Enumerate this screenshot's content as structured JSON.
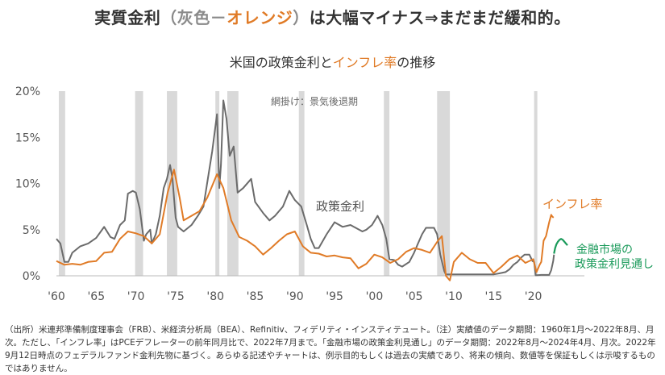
{
  "headline": {
    "prefix": "実質金利",
    "paren_open": "（灰色－",
    "accent": "オレンジ",
    "paren_close": "）",
    "suffix": "は大幅マイナス⇒まだまだ緩和的。"
  },
  "subtitle": {
    "prefix": "米国の政策金利と",
    "accent": "インフレ率",
    "suffix": "の推移"
  },
  "footnote": "（出所）米連邦準備制度理事会（FRB）、米経済分析局（BEA）、Refinitiv、フィデリティ・インスティテュート。（注）実績値のデータ期間：1960年1月～2022年8月、月次。ただし、「インフレ率」はPCEデフレーターの前年同月比で、2022年7月まで。「金融市場の政策金利見通し」のデータ期間：2022年8月～2024年4月、月次。2022年9月12日時点のフェデラルファンド金利先物に基づく。あらゆる記述やチャートは、例示目的もしくは過去の実績であり、将来の傾向、数値等を保証もしくは示唆するものではありません。",
  "colors": {
    "policy_rate": "#6b6b6b",
    "inflation": "#e07b27",
    "outlook": "#1a9a5a",
    "recession": "#d9d9d9"
  },
  "chart_data": {
    "type": "line",
    "title": "米国の政策金利とインフレ率の推移",
    "xlabel": "",
    "ylabel": "",
    "xlim": [
      1960,
      2024.4
    ],
    "ylim": [
      0,
      20
    ],
    "x_ticks": [
      1960,
      1965,
      1970,
      1975,
      1980,
      1985,
      1990,
      1995,
      2000,
      2005,
      2010,
      2015,
      2020
    ],
    "x_tick_labels": [
      "'60",
      "'65",
      "'70",
      "'75",
      "'80",
      "'85",
      "'90",
      "'95",
      "'00",
      "'05",
      "'10",
      "'15",
      "'20"
    ],
    "y_ticks": [
      0,
      5,
      10,
      15,
      20
    ],
    "y_tick_labels": [
      "0%",
      "5%",
      "10%",
      "15%",
      "20%"
    ],
    "recession_label": "網掛け：景気後退期",
    "recessions": [
      [
        1960.3,
        1961.1
      ],
      [
        1969.9,
        1970.9
      ],
      [
        1973.9,
        1975.2
      ],
      [
        1980.0,
        1980.5
      ],
      [
        1981.5,
        1982.9
      ],
      [
        1990.5,
        1991.2
      ],
      [
        2001.2,
        2001.9
      ],
      [
        2007.9,
        2009.5
      ],
      [
        2020.1,
        2020.4
      ]
    ],
    "series": [
      {
        "name": "政策金利",
        "label": "政策金利",
        "color": "#6b6b6b",
        "x": [
          1960.0,
          1960.5,
          1961.0,
          1961.5,
          1962.0,
          1963.0,
          1964.0,
          1965.0,
          1966.0,
          1966.8,
          1967.3,
          1968.0,
          1968.6,
          1969.0,
          1969.6,
          1970.0,
          1970.5,
          1971.0,
          1971.3,
          1971.8,
          1972.0,
          1972.5,
          1973.0,
          1973.5,
          1973.9,
          1974.3,
          1974.6,
          1975.0,
          1975.3,
          1976.0,
          1977.0,
          1977.8,
          1978.5,
          1979.0,
          1979.6,
          1980.2,
          1980.5,
          1980.7,
          1981.0,
          1981.4,
          1981.8,
          1982.3,
          1982.8,
          1983.5,
          1984.5,
          1985.0,
          1986.0,
          1986.8,
          1987.5,
          1988.5,
          1989.3,
          1990.0,
          1990.8,
          1991.5,
          1992.0,
          1992.5,
          1993.0,
          1994.0,
          1995.0,
          1996.0,
          1997.0,
          1998.5,
          1999.0,
          1999.7,
          2000.4,
          2001.0,
          2001.5,
          2001.9,
          2002.5,
          2003.0,
          2003.5,
          2004.4,
          2005.0,
          2005.5,
          2006.0,
          2006.5,
          2007.5,
          2007.9,
          2008.3,
          2008.8,
          2009.0,
          2010.0,
          2012.0,
          2015.0,
          2015.9,
          2016.5,
          2017.0,
          2017.5,
          2018.0,
          2018.5,
          2018.9,
          2019.5,
          2019.9,
          2020.1,
          2020.3,
          2021.0,
          2022.0,
          2022.25,
          2022.4,
          2022.5,
          2022.6
        ],
        "y": [
          4.0,
          3.5,
          1.5,
          1.5,
          2.5,
          3.2,
          3.5,
          4.1,
          5.3,
          4.2,
          4.0,
          5.5,
          6.0,
          8.9,
          9.2,
          9.0,
          7.2,
          3.8,
          4.5,
          5.0,
          3.5,
          4.5,
          6.5,
          9.5,
          10.5,
          12.0,
          10.5,
          6.3,
          5.3,
          4.8,
          5.5,
          6.5,
          7.5,
          10.2,
          13.5,
          17.5,
          9.5,
          12.0,
          19.0,
          17.0,
          13.0,
          14.0,
          9.0,
          9.5,
          10.5,
          8.0,
          6.8,
          6.0,
          6.5,
          7.5,
          9.2,
          8.2,
          7.5,
          5.5,
          4.0,
          3.0,
          3.0,
          4.5,
          5.8,
          5.3,
          5.5,
          4.8,
          5.0,
          5.5,
          6.5,
          5.5,
          4.0,
          1.8,
          1.7,
          1.2,
          1.0,
          1.5,
          2.5,
          3.5,
          4.5,
          5.2,
          5.2,
          4.5,
          2.3,
          0.5,
          0.15,
          0.15,
          0.15,
          0.15,
          0.3,
          0.4,
          0.7,
          1.2,
          1.5,
          2.0,
          2.3,
          2.3,
          1.6,
          1.5,
          0.05,
          0.1,
          0.1,
          0.6,
          1.2,
          1.6,
          2.3
        ]
      },
      {
        "name": "インフレ率",
        "label": "インフレ率",
        "color": "#e07b27",
        "x": [
          1960.0,
          1961.0,
          1962.0,
          1963.0,
          1964.0,
          1965.0,
          1966.0,
          1967.0,
          1968.0,
          1969.0,
          1970.0,
          1971.0,
          1972.0,
          1973.0,
          1974.0,
          1974.8,
          1975.5,
          1976.0,
          1977.0,
          1978.0,
          1979.0,
          1980.2,
          1981.0,
          1982.0,
          1983.0,
          1984.0,
          1985.0,
          1986.0,
          1987.0,
          1988.0,
          1989.0,
          1990.0,
          1991.0,
          1992.0,
          1993.0,
          1994.0,
          1995.0,
          1996.0,
          1997.0,
          1998.0,
          1999.0,
          2000.0,
          2001.0,
          2002.0,
          2003.0,
          2004.0,
          2005.0,
          2006.0,
          2007.0,
          2008.0,
          2008.5,
          2009.0,
          2009.5,
          2010.0,
          2011.0,
          2012.0,
          2013.0,
          2014.0,
          2015.0,
          2016.0,
          2017.0,
          2018.0,
          2019.0,
          2020.0,
          2020.4,
          2020.8,
          2021.0,
          2021.3,
          2021.6,
          2022.0,
          2022.25,
          2022.4,
          2022.55
        ],
        "y": [
          1.6,
          1.2,
          1.3,
          1.2,
          1.5,
          1.6,
          2.5,
          2.6,
          4.0,
          4.8,
          4.6,
          4.3,
          3.5,
          4.5,
          9.0,
          11.5,
          8.5,
          6.0,
          6.5,
          7.0,
          8.5,
          11.0,
          9.5,
          6.0,
          4.2,
          3.8,
          3.2,
          2.3,
          3.0,
          3.8,
          4.5,
          4.8,
          3.2,
          2.5,
          2.4,
          2.1,
          2.2,
          2.0,
          1.9,
          0.8,
          1.3,
          2.3,
          2.0,
          1.4,
          1.8,
          2.6,
          3.0,
          2.8,
          2.5,
          3.8,
          4.3,
          0.0,
          -0.5,
          1.5,
          2.5,
          1.8,
          1.4,
          1.4,
          0.3,
          1.0,
          1.8,
          2.2,
          1.4,
          1.8,
          0.4,
          1.2,
          1.5,
          3.8,
          4.3,
          5.8,
          6.6,
          6.4,
          6.3
        ]
      },
      {
        "name": "金融市場の政策金利見通し",
        "label_line1": "金融市場の",
        "label_line2": "政策金利見通し",
        "color": "#1a9a5a",
        "x": [
          2022.6,
          2022.75,
          2022.9,
          2023.1,
          2023.3,
          2023.5,
          2023.7,
          2023.9,
          2024.1,
          2024.3
        ],
        "y": [
          2.4,
          3.0,
          3.4,
          3.7,
          3.9,
          4.0,
          3.9,
          3.7,
          3.5,
          3.3
        ]
      }
    ]
  }
}
